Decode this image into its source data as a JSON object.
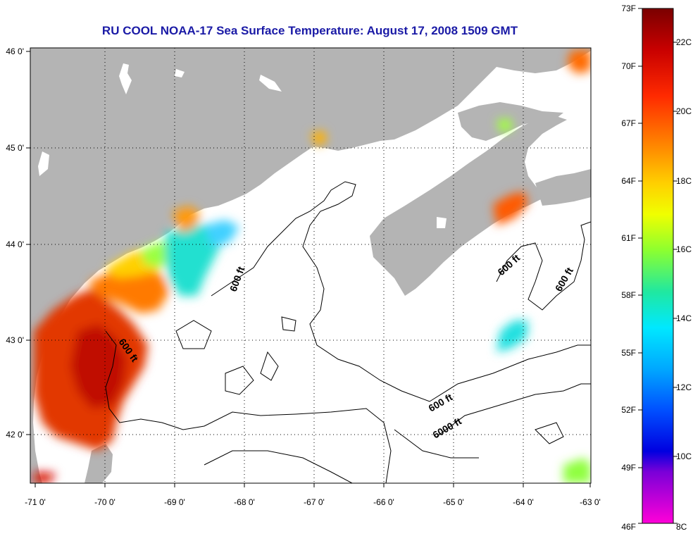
{
  "title": "RU COOL  NOAA-17  Sea Surface Temperature:  August 17, 2008 1509 GMT",
  "title_color": "#1a1aa6",
  "map": {
    "lon_ticks": [
      "-71 0'",
      "-70 0'",
      "-69 0'",
      "-68 0'",
      "-67 0'",
      "-66 0'",
      "-65 0'",
      "-64 0'",
      "-63 0'"
    ],
    "lat_ticks": [
      "46 0'",
      "45 0'",
      "44 0'",
      "43 0'",
      "42 0'"
    ],
    "land_color": "#b4b4b4",
    "isobath_labels": [
      "600 ft",
      "600 ft",
      "600 ft",
      "600 ft",
      "600 ft",
      "6000 ft"
    ]
  },
  "colorbar": {
    "fahrenheit": [
      "73F",
      "70F",
      "67F",
      "64F",
      "61F",
      "58F",
      "55F",
      "52F",
      "49F",
      "46F"
    ],
    "celsius": [
      "22C",
      "20C",
      "18C",
      "16C",
      "14C",
      "12C",
      "10C",
      "8C"
    ]
  }
}
